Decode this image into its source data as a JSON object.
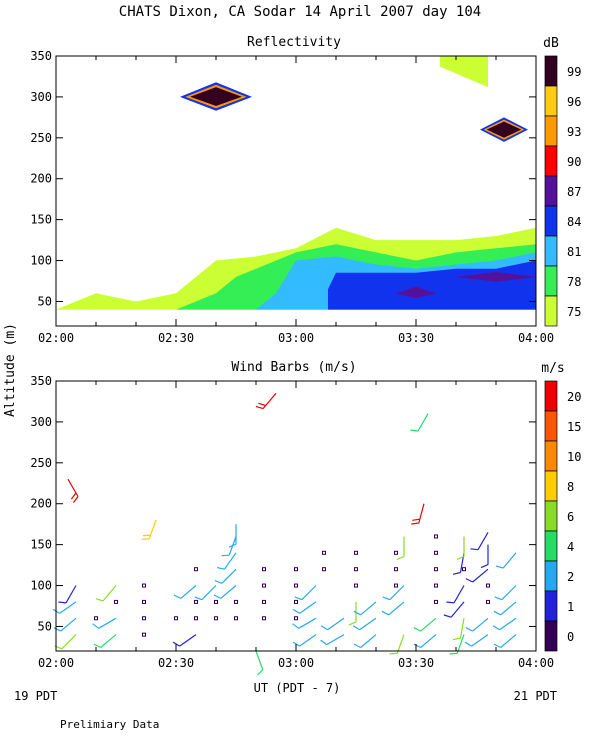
{
  "header": {
    "title": "CHATS Dixon, CA  Sodar  14 April 2007  day 104",
    "y_axis_label": "Altitude (m)",
    "x_axis_label": "UT  (PDT - 7)",
    "left_date": "19 PDT",
    "right_date": "21 PDT",
    "footnote": "Prelimiary Data"
  },
  "colors": {
    "reflectivity": [
      "#ccff33",
      "#33ee55",
      "#33bbff",
      "#1133ee",
      "#551199",
      "#ff0000",
      "#ff9900",
      "#ffcc11",
      "#330022"
    ],
    "wind": [
      "#330055",
      "#2222dd",
      "#22aaee",
      "#22dd66",
      "#88dd22",
      "#ffcc00",
      "#ff8800",
      "#ff5500",
      "#ee0000"
    ]
  },
  "chart_data": [
    {
      "type": "heatmap",
      "title": "Reflectivity",
      "colorbar_label": "dB",
      "colorbar_ticks": [
        "99",
        "96",
        "93",
        "90",
        "87",
        "84",
        "81",
        "78",
        "75"
      ],
      "x_ticks": [
        "02:00",
        "02:30",
        "03:00",
        "03:30",
        "04:00"
      ],
      "y_ticks": [
        "350",
        "300",
        "250",
        "200",
        "150",
        "100",
        "50"
      ],
      "xlim": [
        "02:00",
        "04:00"
      ],
      "ylim": [
        20,
        350
      ],
      "contours": [
        {
          "level_db": 75,
          "outline": [
            [
              "02:00",
              40
            ],
            [
              "02:10",
              60
            ],
            [
              "02:20",
              50
            ],
            [
              "02:30",
              60
            ],
            [
              "02:35",
              80
            ],
            [
              "02:40",
              100
            ],
            [
              "02:50",
              105
            ],
            [
              "03:00",
              115
            ],
            [
              "03:10",
              140
            ],
            [
              "03:20",
              125
            ],
            [
              "03:30",
              125
            ],
            [
              "03:40",
              125
            ],
            [
              "03:50",
              130
            ],
            [
              "04:00",
              140
            ],
            [
              "04:00",
              40
            ]
          ]
        },
        {
          "level_db": 78,
          "outline": [
            [
              "02:30",
              40
            ],
            [
              "02:40",
              60
            ],
            [
              "02:45",
              80
            ],
            [
              "02:50",
              90
            ],
            [
              "03:00",
              110
            ],
            [
              "03:10",
              120
            ],
            [
              "03:20",
              110
            ],
            [
              "03:30",
              100
            ],
            [
              "03:40",
              110
            ],
            [
              "03:50",
              115
            ],
            [
              "04:00",
              120
            ],
            [
              "04:00",
              40
            ]
          ]
        },
        {
          "level_db": 81,
          "outline": [
            [
              "02:50",
              40
            ],
            [
              "02:55",
              60
            ],
            [
              "03:00",
              100
            ],
            [
              "03:10",
              105
            ],
            [
              "03:20",
              95
            ],
            [
              "03:30",
              90
            ],
            [
              "03:40",
              95
            ],
            [
              "03:50",
              100
            ],
            [
              "04:00",
              110
            ],
            [
              "04:00",
              40
            ]
          ]
        },
        {
          "level_db": 84,
          "outline": [
            [
              "03:08",
              40
            ],
            [
              "03:08",
              65
            ],
            [
              "03:10",
              85
            ],
            [
              "03:20",
              85
            ],
            [
              "03:30",
              85
            ],
            [
              "03:40",
              90
            ],
            [
              "03:50",
              90
            ],
            [
              "04:00",
              100
            ],
            [
              "04:00",
              40
            ]
          ]
        },
        {
          "level_db": 87,
          "outline": [
            [
              "03:25",
              60
            ],
            [
              "03:30",
              68
            ],
            [
              "03:35",
              60
            ],
            [
              "03:30",
              54
            ]
          ]
        },
        {
          "level_db": 87,
          "outline": [
            [
              "03:40",
              80
            ],
            [
              "03:50",
              86
            ],
            [
              "04:00",
              80
            ],
            [
              "03:50",
              74
            ]
          ]
        },
        {
          "level_db": 75,
          "outline": [
            [
              "03:36",
              350
            ],
            [
              "03:48",
              350
            ],
            [
              "03:48",
              312
            ],
            [
              "03:36",
              337
            ]
          ]
        },
        {
          "level_db": 99,
          "outline": [
            [
              "02:31",
              300
            ],
            [
              "02:40",
              318
            ],
            [
              "02:49",
              300
            ],
            [
              "02:40",
              283
            ]
          ]
        },
        {
          "level_db": 99,
          "outline": [
            [
              "03:46",
              260
            ],
            [
              "03:52",
              275
            ],
            [
              "03:58",
              260
            ],
            [
              "03:52",
              245
            ]
          ]
        }
      ]
    },
    {
      "type": "scatter",
      "title": "Wind Barbs (m/s)",
      "colorbar_label": "m/s",
      "colorbar_ticks": [
        "20",
        "15",
        "10",
        "8",
        "6",
        "4",
        "2",
        "1",
        "0"
      ],
      "x_ticks": [
        "02:00",
        "02:30",
        "03:00",
        "03:30",
        "04:00"
      ],
      "y_ticks": [
        "350",
        "300",
        "250",
        "200",
        "150",
        "100",
        "50"
      ],
      "xlim": [
        "02:00",
        "04:00"
      ],
      "ylim": [
        20,
        350
      ],
      "barbs": [
        {
          "time": "02:03",
          "alt": 230,
          "color_index": 8,
          "dir": 150,
          "barbs": 2
        },
        {
          "time": "02:05",
          "alt": 40,
          "color_index": 4,
          "dir": 225,
          "barbs": 1
        },
        {
          "time": "02:05",
          "alt": 60,
          "color_index": 2,
          "dir": 230,
          "barbs": 1
        },
        {
          "time": "02:05",
          "alt": 80,
          "color_index": 2,
          "dir": 235,
          "barbs": 1
        },
        {
          "time": "02:05",
          "alt": 100,
          "color_index": 1,
          "dir": 210,
          "barbs": 1
        },
        {
          "time": "02:10",
          "alt": 60,
          "color_index": 0,
          "calm": true
        },
        {
          "time": "02:15",
          "alt": 80,
          "color_index": 0,
          "calm": true
        },
        {
          "time": "02:15",
          "alt": 100,
          "color_index": 4,
          "dir": 220,
          "barbs": 1
        },
        {
          "time": "02:15",
          "alt": 40,
          "color_index": 3,
          "dir": 230,
          "barbs": 1
        },
        {
          "time": "02:15",
          "alt": 60,
          "color_index": 2,
          "dir": 240,
          "barbs": 1
        },
        {
          "time": "02:22",
          "alt": 40,
          "color_index": 0,
          "calm": true
        },
        {
          "time": "02:22",
          "alt": 60,
          "color_index": 0,
          "calm": true
        },
        {
          "time": "02:22",
          "alt": 80,
          "color_index": 0,
          "calm": true
        },
        {
          "time": "02:22",
          "alt": 100,
          "color_index": 0,
          "calm": true
        },
        {
          "time": "02:25",
          "alt": 180,
          "color_index": 5,
          "dir": 200,
          "barbs": 2
        },
        {
          "time": "02:30",
          "alt": 60,
          "color_index": 0,
          "calm": true
        },
        {
          "time": "02:35",
          "alt": 40,
          "color_index": 1,
          "dir": 235,
          "barbs": 1
        },
        {
          "time": "02:35",
          "alt": 60,
          "color_index": 0,
          "calm": true
        },
        {
          "time": "02:35",
          "alt": 80,
          "color_index": 0,
          "calm": true
        },
        {
          "time": "02:35",
          "alt": 100,
          "color_index": 2,
          "dir": 230,
          "barbs": 1
        },
        {
          "time": "02:35",
          "alt": 120,
          "color_index": 0,
          "calm": true
        },
        {
          "time": "02:40",
          "alt": 60,
          "color_index": 0,
          "calm": true
        },
        {
          "time": "02:40",
          "alt": 80,
          "color_index": 0,
          "calm": true
        },
        {
          "time": "02:40",
          "alt": 100,
          "color_index": 2,
          "dir": 225,
          "barbs": 1
        },
        {
          "time": "02:45",
          "alt": 60,
          "color_index": 0,
          "calm": true
        },
        {
          "time": "02:45",
          "alt": 80,
          "color_index": 0,
          "calm": true
        },
        {
          "time": "02:45",
          "alt": 100,
          "color_index": 2,
          "dir": 230,
          "barbs": 1
        },
        {
          "time": "02:45",
          "alt": 120,
          "color_index": 2,
          "dir": 225,
          "barbs": 1
        },
        {
          "time": "02:45",
          "alt": 140,
          "color_index": 2,
          "dir": 215,
          "barbs": 1
        },
        {
          "time": "02:45",
          "alt": 160,
          "color_index": 2,
          "dir": 200,
          "barbs": 1
        },
        {
          "time": "02:45",
          "alt": 175,
          "color_index": 2,
          "dir": 180,
          "barbs": 1
        },
        {
          "time": "02:50",
          "alt": 20,
          "color_index": 3,
          "dir": 160,
          "barbs": 1
        },
        {
          "time": "02:52",
          "alt": 60,
          "color_index": 0,
          "calm": true
        },
        {
          "time": "02:52",
          "alt": 80,
          "color_index": 0,
          "calm": true
        },
        {
          "time": "02:52",
          "alt": 100,
          "color_index": 0,
          "calm": true
        },
        {
          "time": "02:52",
          "alt": 120,
          "color_index": 0,
          "calm": true
        },
        {
          "time": "02:55",
          "alt": 335,
          "color_index": 8,
          "dir": 220,
          "barbs": 2
        },
        {
          "time": "03:00",
          "alt": 60,
          "color_index": 0,
          "calm": true
        },
        {
          "time": "03:00",
          "alt": 80,
          "color_index": 0,
          "calm": true
        },
        {
          "time": "03:00",
          "alt": 100,
          "color_index": 0,
          "calm": true
        },
        {
          "time": "03:00",
          "alt": 120,
          "color_index": 0,
          "calm": true
        },
        {
          "time": "03:05",
          "alt": 40,
          "color_index": 2,
          "dir": 235,
          "barbs": 1
        },
        {
          "time": "03:05",
          "alt": 60,
          "color_index": 2,
          "dir": 240,
          "barbs": 1
        },
        {
          "time": "03:05",
          "alt": 80,
          "color_index": 2,
          "dir": 235,
          "barbs": 1
        },
        {
          "time": "03:05",
          "alt": 100,
          "color_index": 2,
          "dir": 225,
          "barbs": 1
        },
        {
          "time": "03:07",
          "alt": 120,
          "color_index": 0,
          "calm": true
        },
        {
          "time": "03:07",
          "alt": 140,
          "color_index": 0,
          "calm": true
        },
        {
          "time": "03:12",
          "alt": 40,
          "color_index": 2,
          "dir": 240,
          "barbs": 1
        },
        {
          "time": "03:12",
          "alt": 60,
          "color_index": 2,
          "dir": 235,
          "barbs": 1
        },
        {
          "time": "03:15",
          "alt": 80,
          "color_index": 4,
          "dir": 180,
          "barbs": 1
        },
        {
          "time": "03:15",
          "alt": 100,
          "color_index": 0,
          "calm": true
        },
        {
          "time": "03:15",
          "alt": 120,
          "color_index": 0,
          "calm": true
        },
        {
          "time": "03:15",
          "alt": 140,
          "color_index": 0,
          "calm": true
        },
        {
          "time": "03:20",
          "alt": 40,
          "color_index": 2,
          "dir": 230,
          "barbs": 1
        },
        {
          "time": "03:20",
          "alt": 60,
          "color_index": 2,
          "dir": 235,
          "barbs": 1
        },
        {
          "time": "03:20",
          "alt": 80,
          "color_index": 2,
          "dir": 230,
          "barbs": 1
        },
        {
          "time": "03:25",
          "alt": 100,
          "color_index": 0,
          "calm": true
        },
        {
          "time": "03:25",
          "alt": 120,
          "color_index": 0,
          "calm": true
        },
        {
          "time": "03:25",
          "alt": 140,
          "color_index": 0,
          "calm": true
        },
        {
          "time": "03:27",
          "alt": 40,
          "color_index": 4,
          "dir": 200,
          "barbs": 1
        },
        {
          "time": "03:27",
          "alt": 160,
          "color_index": 4,
          "dir": 180,
          "barbs": 1
        },
        {
          "time": "03:27",
          "alt": 80,
          "color_index": 2,
          "dir": 230,
          "barbs": 1
        },
        {
          "time": "03:27",
          "alt": 100,
          "color_index": 2,
          "dir": 225,
          "barbs": 1
        },
        {
          "time": "03:32",
          "alt": 200,
          "color_index": 8,
          "dir": 195,
          "barbs": 2
        },
        {
          "time": "03:33",
          "alt": 310,
          "color_index": 3,
          "dir": 210,
          "barbs": 1
        },
        {
          "time": "03:35",
          "alt": 40,
          "color_index": 2,
          "dir": 230,
          "barbs": 1
        },
        {
          "time": "03:35",
          "alt": 60,
          "color_index": 3,
          "dir": 230,
          "barbs": 1
        },
        {
          "time": "03:35",
          "alt": 80,
          "color_index": 0,
          "calm": true
        },
        {
          "time": "03:35",
          "alt": 100,
          "color_index": 0,
          "calm": true
        },
        {
          "time": "03:35",
          "alt": 120,
          "color_index": 0,
          "calm": true
        },
        {
          "time": "03:35",
          "alt": 140,
          "color_index": 0,
          "calm": true
        },
        {
          "time": "03:35",
          "alt": 160,
          "color_index": 0,
          "calm": true
        },
        {
          "time": "03:42",
          "alt": 40,
          "color_index": 3,
          "dir": 200,
          "barbs": 1
        },
        {
          "time": "03:42",
          "alt": 60,
          "color_index": 4,
          "dir": 190,
          "barbs": 1
        },
        {
          "time": "03:42",
          "alt": 80,
          "color_index": 1,
          "dir": 220,
          "barbs": 1
        },
        {
          "time": "03:42",
          "alt": 100,
          "color_index": 1,
          "dir": 210,
          "barbs": 1
        },
        {
          "time": "03:42",
          "alt": 120,
          "color_index": 0,
          "calm": true
        },
        {
          "time": "03:42",
          "alt": 140,
          "color_index": 1,
          "dir": 190,
          "barbs": 1
        },
        {
          "time": "03:42",
          "alt": 160,
          "color_index": 4,
          "dir": 180,
          "barbs": 1
        },
        {
          "time": "03:48",
          "alt": 40,
          "color_index": 2,
          "dir": 235,
          "barbs": 1
        },
        {
          "time": "03:48",
          "alt": 60,
          "color_index": 2,
          "dir": 230,
          "barbs": 1
        },
        {
          "time": "03:48",
          "alt": 80,
          "color_index": 0,
          "calm": true
        },
        {
          "time": "03:48",
          "alt": 100,
          "color_index": 0,
          "calm": true
        },
        {
          "time": "03:48",
          "alt": 120,
          "color_index": 1,
          "dir": 230,
          "barbs": 1
        },
        {
          "time": "03:48",
          "alt": 150,
          "color_index": 1,
          "dir": 180,
          "barbs": 1
        },
        {
          "time": "03:48",
          "alt": 165,
          "color_index": 1,
          "dir": 210,
          "barbs": 1
        },
        {
          "time": "03:55",
          "alt": 40,
          "color_index": 2,
          "dir": 230,
          "barbs": 1
        },
        {
          "time": "03:55",
          "alt": 60,
          "color_index": 2,
          "dir": 235,
          "barbs": 1
        },
        {
          "time": "03:55",
          "alt": 80,
          "color_index": 2,
          "dir": 230,
          "barbs": 1
        },
        {
          "time": "03:55",
          "alt": 100,
          "color_index": 2,
          "dir": 225,
          "barbs": 1
        },
        {
          "time": "03:55",
          "alt": 140,
          "color_index": 2,
          "dir": 220,
          "barbs": 1
        }
      ]
    }
  ]
}
